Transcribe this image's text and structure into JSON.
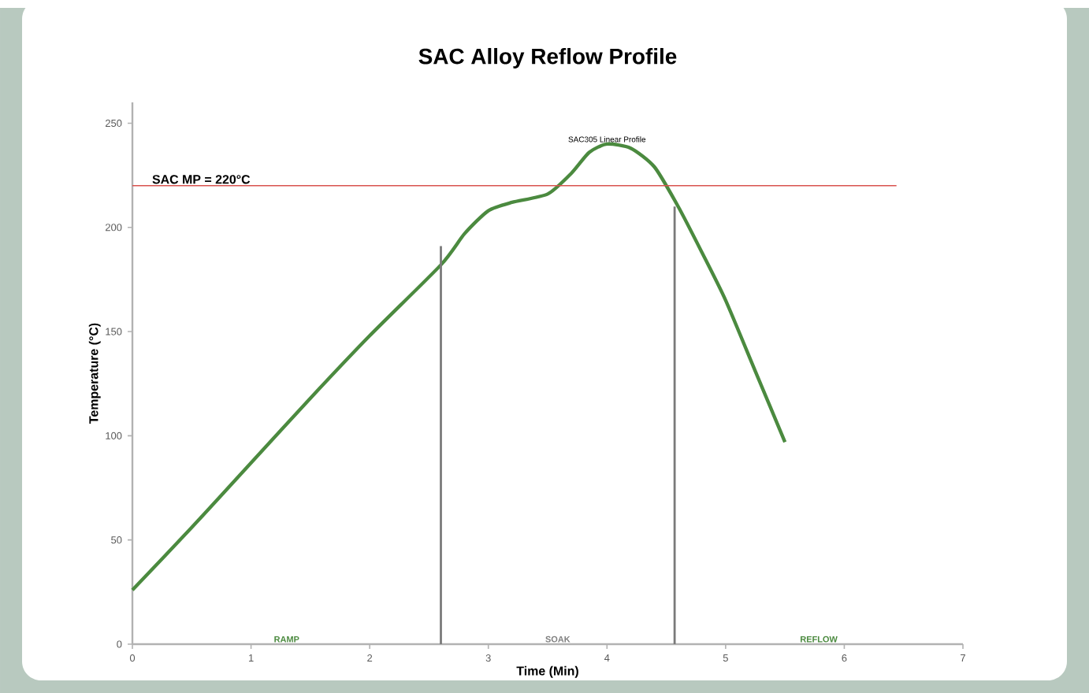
{
  "chart_data": {
    "type": "line",
    "title": "SAC Alloy Reflow Profile",
    "xlabel": "Time (Min)",
    "ylabel": "Temperature (°C)",
    "xlim": [
      0,
      7
    ],
    "ylim": [
      0,
      260
    ],
    "xticks": [
      0,
      1,
      2,
      3,
      4,
      5,
      6,
      7
    ],
    "yticks": [
      0,
      50,
      100,
      150,
      200,
      250
    ],
    "series": [
      {
        "color": "#4b8a3f",
        "x": [
          0,
          0.5,
          1,
          1.5,
          2,
          2.6,
          2.8,
          3.0,
          3.2,
          3.5,
          3.7,
          3.85,
          4.0,
          4.2,
          4.4,
          4.6,
          4.8,
          5.0,
          5.25,
          5.5
        ],
        "values": [
          26,
          56,
          87,
          118,
          148,
          182,
          197,
          208,
          212,
          216,
          226,
          236,
          240,
          238,
          229,
          210,
          188,
          165,
          131,
          97
        ]
      },
      {
        "color": "#7a7a7a",
        "x": [
          2.6,
          2.6
        ],
        "values": [
          0,
          191
        ]
      },
      {
        "color": "#7a7a7a",
        "x": [
          4.57,
          4.57
        ],
        "values": [
          0,
          210
        ]
      }
    ],
    "ref_lines": [
      {
        "axis": "y",
        "value": 220,
        "label": "SAC MP = 220°C",
        "color": "#d9534f"
      }
    ],
    "annotations": [
      {
        "text": "SAC305 Linear Profile",
        "x": 4.0,
        "y": 240
      },
      "RAMP",
      "SOAK",
      "REFLOW"
    ]
  }
}
